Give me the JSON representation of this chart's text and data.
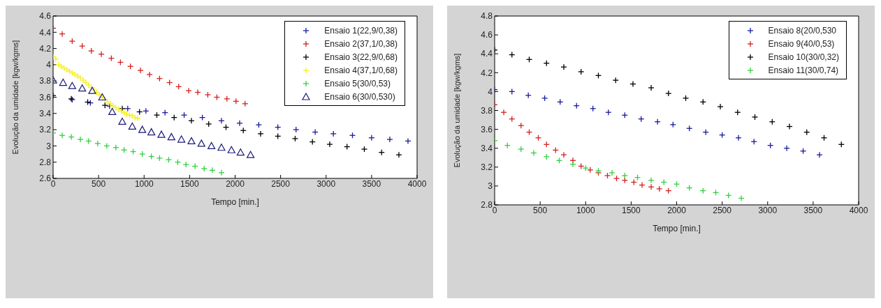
{
  "chart_data": [
    {
      "type": "scatter",
      "xlabel": "Tempo [min.]",
      "ylabel": "Evolução da umidade [kgw/kgms]",
      "xlim": [
        0,
        4000
      ],
      "xticks": [
        0,
        500,
        1000,
        1500,
        2000,
        2500,
        3000,
        3500,
        4000
      ],
      "ylim": [
        2.6,
        4.6
      ],
      "yticks": [
        2.6,
        2.8,
        3,
        3.2,
        3.4,
        3.6,
        3.8,
        4,
        4.2,
        4.4,
        4.6
      ],
      "grid": false,
      "legend": "top right",
      "marker": "cross",
      "series": [
        {
          "name": "Ensaio 1(22,9/0,38)",
          "color": "#1a1a9e",
          "x": [
            210,
            410,
            620,
            820,
            1020,
            1230,
            1440,
            1640,
            1850,
            2050,
            2260,
            2470,
            2670,
            2880,
            3080,
            3290,
            3500,
            3700,
            3900
          ],
          "values": [
            3.57,
            3.53,
            3.49,
            3.46,
            3.43,
            3.41,
            3.38,
            3.35,
            3.31,
            3.28,
            3.26,
            3.23,
            3.2,
            3.17,
            3.15,
            3.13,
            3.1,
            3.08,
            3.06
          ]
        },
        {
          "name": "Ensaio 2(37,1/0,38)",
          "color": "#d42020",
          "x": [
            0,
            100,
            210,
            320,
            420,
            530,
            640,
            740,
            850,
            960,
            1060,
            1170,
            1280,
            1380,
            1490,
            1590,
            1700,
            1800,
            1910,
            2010,
            2110
          ],
          "values": [
            4.45,
            4.38,
            4.29,
            4.23,
            4.17,
            4.13,
            4.08,
            4.03,
            3.98,
            3.93,
            3.88,
            3.83,
            3.78,
            3.73,
            3.68,
            3.66,
            3.63,
            3.6,
            3.58,
            3.55,
            3.52
          ]
        },
        {
          "name": "Ensaio 3(22,9/0,68)",
          "color": "#000000",
          "x": [
            0,
            200,
            380,
            570,
            760,
            950,
            1140,
            1330,
            1520,
            1710,
            1900,
            2090,
            2280,
            2470,
            2660,
            2850,
            3040,
            3230,
            3420,
            3610,
            3800
          ],
          "values": [
            3.62,
            3.58,
            3.54,
            3.5,
            3.46,
            3.42,
            3.38,
            3.35,
            3.31,
            3.27,
            3.23,
            3.19,
            3.15,
            3.12,
            3.09,
            3.05,
            3.02,
            2.99,
            2.96,
            2.92,
            2.89
          ]
        },
        {
          "name": "Ensaio 4(37,1/0,68)",
          "color": "#f5f020",
          "x": [
            0,
            30,
            60,
            90,
            120,
            150,
            180,
            210,
            240,
            270,
            300,
            330,
            360,
            390,
            420,
            450,
            480,
            510,
            540,
            570,
            600,
            630,
            660,
            690,
            720,
            750,
            780,
            810,
            840,
            870,
            900,
            930
          ],
          "values": [
            4.1,
            4.07,
            4,
            3.98,
            3.96,
            3.94,
            3.92,
            3.9,
            3.88,
            3.86,
            3.84,
            3.81,
            3.78,
            3.75,
            3.72,
            3.69,
            3.66,
            3.63,
            3.6,
            3.57,
            3.54,
            3.52,
            3.49,
            3.47,
            3.45,
            3.43,
            3.41,
            3.39,
            3.38,
            3.37,
            3.35,
            3.34
          ]
        },
        {
          "name": "Ensaio 5(30/0,53)",
          "color": "#30d040",
          "x": [
            0,
            100,
            200,
            300,
            390,
            490,
            590,
            690,
            780,
            880,
            980,
            1080,
            1170,
            1270,
            1370,
            1460,
            1560,
            1660,
            1750,
            1850
          ],
          "values": [
            3.16,
            3.13,
            3.11,
            3.08,
            3.06,
            3.03,
            3,
            2.98,
            2.95,
            2.93,
            2.9,
            2.87,
            2.85,
            2.83,
            2.8,
            2.77,
            2.75,
            2.72,
            2.7,
            2.67
          ]
        },
        {
          "name": "Ensaio 6(30/0,530)",
          "color": "#1a1a7a",
          "marker": "triangle",
          "x": [
            0,
            110,
            210,
            320,
            430,
            540,
            650,
            760,
            870,
            980,
            1080,
            1190,
            1300,
            1410,
            1520,
            1630,
            1740,
            1850,
            1960,
            2060,
            2170
          ],
          "values": [
            3.81,
            3.78,
            3.74,
            3.71,
            3.68,
            3.6,
            3.42,
            3.3,
            3.24,
            3.2,
            3.17,
            3.14,
            3.11,
            3.08,
            3.06,
            3.03,
            3,
            2.98,
            2.95,
            2.92,
            2.89
          ]
        }
      ]
    },
    {
      "type": "scatter",
      "xlabel": "Tempo [min.]",
      "ylabel": "Evolução da umidade [kgw/kgms]",
      "xlim": [
        0,
        4000
      ],
      "xticks": [
        0,
        500,
        1000,
        1500,
        2000,
        2500,
        3000,
        3500,
        4000
      ],
      "ylim": [
        2.8,
        4.8
      ],
      "yticks": [
        2.8,
        3,
        3.2,
        3.4,
        3.6,
        3.8,
        4,
        4.2,
        4.4,
        4.6,
        4.8
      ],
      "grid": false,
      "legend": "top right",
      "marker": "cross",
      "series": [
        {
          "name": "Ensaio 8(20/0,530",
          "color": "#1a1a9e",
          "x": [
            0,
            190,
            370,
            550,
            720,
            900,
            1080,
            1250,
            1430,
            1610,
            1790,
            1960,
            2140,
            2320,
            2500,
            2680,
            2850,
            3030,
            3210,
            3390,
            3570
          ],
          "values": [
            4.02,
            4,
            3.96,
            3.93,
            3.89,
            3.85,
            3.82,
            3.78,
            3.75,
            3.71,
            3.68,
            3.65,
            3.61,
            3.57,
            3.54,
            3.51,
            3.47,
            3.43,
            3.4,
            3.37,
            3.33
          ]
        },
        {
          "name": "Ensaio 9(40/0,53)",
          "color": "#d42020",
          "x": [
            0,
            100,
            190,
            290,
            380,
            480,
            570,
            670,
            760,
            860,
            950,
            1050,
            1140,
            1240,
            1340,
            1430,
            1530,
            1620,
            1720,
            1810,
            1910
          ],
          "values": [
            3.86,
            3.78,
            3.71,
            3.64,
            3.57,
            3.51,
            3.44,
            3.38,
            3.33,
            3.27,
            3.21,
            3.17,
            3.14,
            3.11,
            3.08,
            3.06,
            3.04,
            3.01,
            2.99,
            2.97,
            2.95
          ]
        },
        {
          "name": "Ensaio 10(30/0,32)",
          "color": "#000000",
          "x": [
            0,
            190,
            380,
            570,
            760,
            950,
            1140,
            1330,
            1520,
            1720,
            1910,
            2100,
            2290,
            2480,
            2670,
            2860,
            3050,
            3240,
            3430,
            3620,
            3810
          ],
          "values": [
            4.44,
            4.39,
            4.34,
            4.3,
            4.26,
            4.21,
            4.17,
            4.12,
            4.08,
            4.04,
            3.98,
            3.93,
            3.89,
            3.84,
            3.78,
            3.73,
            3.68,
            3.63,
            3.57,
            3.51,
            3.44
          ]
        },
        {
          "name": "Ensaio 11(30/0,74)",
          "color": "#30d040",
          "x": [
            0,
            140,
            290,
            430,
            570,
            710,
            860,
            1000,
            1140,
            1290,
            1430,
            1570,
            1720,
            1860,
            2000,
            2140,
            2290,
            2430,
            2570,
            2710
          ],
          "values": [
            3.48,
            3.43,
            3.39,
            3.35,
            3.31,
            3.27,
            3.23,
            3.19,
            3.16,
            3.14,
            3.11,
            3.09,
            3.06,
            3.04,
            3.02,
            2.98,
            2.95,
            2.93,
            2.9,
            2.87
          ]
        }
      ]
    }
  ]
}
